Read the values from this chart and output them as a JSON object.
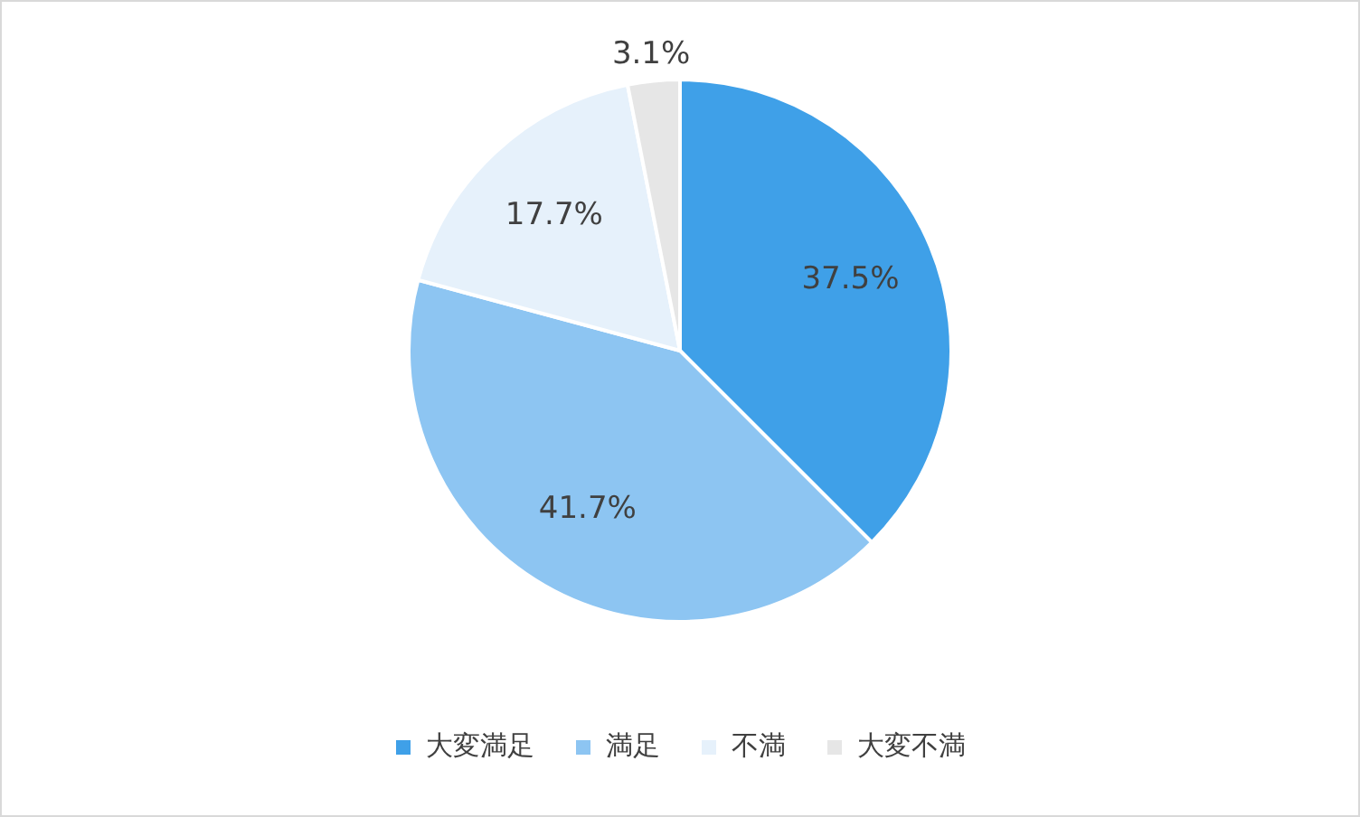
{
  "chart_data": {
    "type": "pie",
    "categories": [
      "大変満足",
      "満足",
      "不満",
      "大変不満"
    ],
    "values": [
      37.5,
      41.7,
      17.7,
      3.1
    ],
    "value_labels": [
      "37.5%",
      "41.7%",
      "17.7%",
      "3.1%"
    ],
    "colors": [
      "#3fa0e8",
      "#8dc5f2",
      "#e6f1fb",
      "#e6e6e6"
    ],
    "legend": "bottom"
  }
}
